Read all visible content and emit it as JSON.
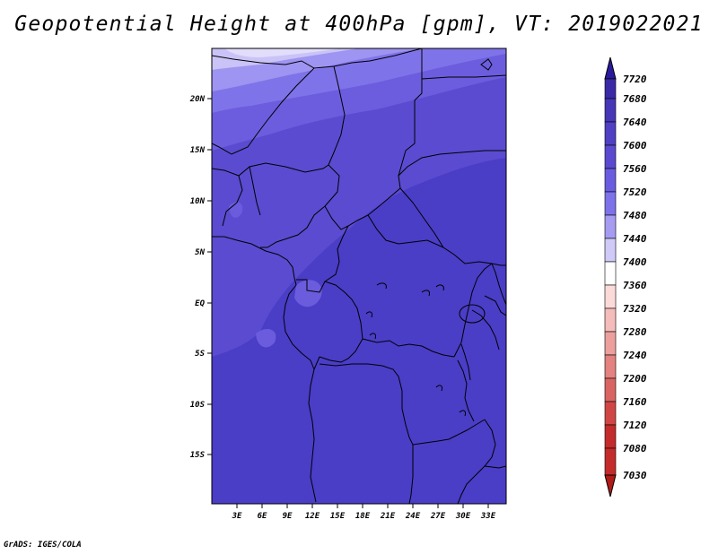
{
  "title": "Geopotential Height at 400hPa [gpm], VT: 2019022021",
  "footer": "GrADS: IGES/COLA",
  "map": {
    "lat_labels": [
      "20N",
      "15N",
      "10N",
      "5N",
      "EQ",
      "5S",
      "10S",
      "15S"
    ],
    "lon_labels": [
      "3E",
      "6E",
      "9E",
      "12E",
      "15E",
      "18E",
      "21E",
      "24E",
      "27E",
      "30E",
      "33E"
    ]
  },
  "colorbar": {
    "labels": [
      "7720",
      "7680",
      "7640",
      "7600",
      "7560",
      "7520",
      "7480",
      "7440",
      "7400",
      "7360",
      "7320",
      "7280",
      "7240",
      "7200",
      "7160",
      "7120",
      "7080",
      "7030"
    ],
    "colors": [
      "#2a1a9c",
      "#3a2aa8",
      "#4636b8",
      "#4f40c4",
      "#5a4ad0",
      "#6a5ce0",
      "#7e72ea",
      "#a59cf2",
      "#cfcaf7",
      "#ffffff",
      "#fbdad8",
      "#f4bcba",
      "#ec9f9c",
      "#e38280",
      "#d96462",
      "#d04644",
      "#c32c2a",
      "#b01c18"
    ]
  }
}
